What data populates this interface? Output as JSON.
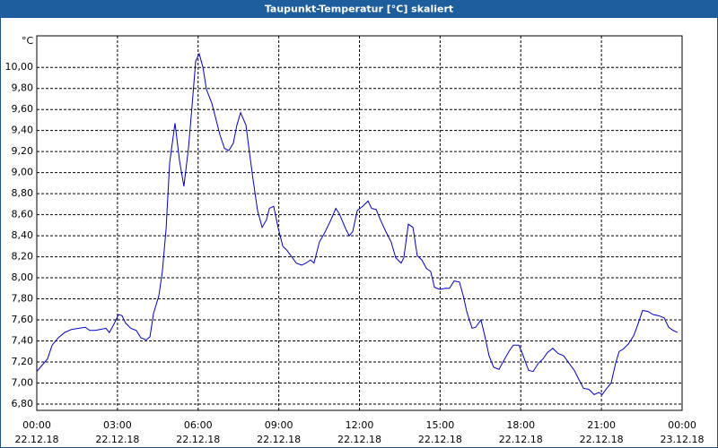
{
  "chart_data": {
    "type": "line",
    "title": "Taupunkt-Temperatur [°C] skaliert",
    "y_unit": "°C",
    "x": [
      0.0,
      0.2,
      0.4,
      0.57,
      0.8,
      1.03,
      1.3,
      1.57,
      1.8,
      1.97,
      2.17,
      2.37,
      2.57,
      2.7,
      2.87,
      3.04,
      3.17,
      3.3,
      3.5,
      3.7,
      3.87,
      4.07,
      4.21,
      4.34,
      4.54,
      4.67,
      4.81,
      4.94,
      5.14,
      5.31,
      5.47,
      5.64,
      5.77,
      5.91,
      6.04,
      6.18,
      6.31,
      6.51,
      6.64,
      6.81,
      6.98,
      7.14,
      7.31,
      7.44,
      7.58,
      7.78,
      7.91,
      8.04,
      8.21,
      8.38,
      8.54,
      8.65,
      8.81,
      8.98,
      9.15,
      9.31,
      9.48,
      9.65,
      9.85,
      10.01,
      10.18,
      10.31,
      10.51,
      10.71,
      10.92,
      11.12,
      11.25,
      11.48,
      11.62,
      11.75,
      11.92,
      12.12,
      12.32,
      12.45,
      12.62,
      12.78,
      12.98,
      13.18,
      13.35,
      13.55,
      13.65,
      13.82,
      13.99,
      14.15,
      14.32,
      14.49,
      14.65,
      14.79,
      14.99,
      15.19,
      15.35,
      15.52,
      15.72,
      15.86,
      15.99,
      16.19,
      16.32,
      16.52,
      16.66,
      16.82,
      16.99,
      17.19,
      17.36,
      17.56,
      17.72,
      17.93,
      18.06,
      18.29,
      18.46,
      18.66,
      18.83,
      18.99,
      19.19,
      19.39,
      19.59,
      19.79,
      19.99,
      20.19,
      20.33,
      20.53,
      20.73,
      20.9,
      21.03,
      21.2,
      21.36,
      21.53,
      21.66,
      21.8,
      22.0,
      22.2,
      22.36,
      22.53,
      22.73,
      22.93,
      23.13,
      23.33,
      23.5,
      23.67,
      23.83
    ],
    "values": [
      7.11,
      7.17,
      7.23,
      7.36,
      7.43,
      7.48,
      7.51,
      7.52,
      7.53,
      7.5,
      7.5,
      7.51,
      7.52,
      7.48,
      7.56,
      7.65,
      7.64,
      7.57,
      7.52,
      7.5,
      7.43,
      7.41,
      7.44,
      7.66,
      7.83,
      8.06,
      8.47,
      9.09,
      9.47,
      9.11,
      8.87,
      9.23,
      9.62,
      10.06,
      10.13,
      10.0,
      9.79,
      9.66,
      9.53,
      9.36,
      9.23,
      9.21,
      9.28,
      9.45,
      9.57,
      9.45,
      9.19,
      8.94,
      8.64,
      8.48,
      8.55,
      8.66,
      8.68,
      8.47,
      8.3,
      8.26,
      8.2,
      8.14,
      8.12,
      8.14,
      8.17,
      8.14,
      8.34,
      8.43,
      8.54,
      8.66,
      8.61,
      8.47,
      8.4,
      8.44,
      8.64,
      8.68,
      8.73,
      8.66,
      8.65,
      8.55,
      8.44,
      8.34,
      8.19,
      8.14,
      8.19,
      8.51,
      8.48,
      8.21,
      8.17,
      8.09,
      8.06,
      7.91,
      7.89,
      7.9,
      7.9,
      7.97,
      7.96,
      7.83,
      7.68,
      7.52,
      7.53,
      7.6,
      7.45,
      7.26,
      7.15,
      7.13,
      7.21,
      7.3,
      7.36,
      7.36,
      7.28,
      7.12,
      7.11,
      7.19,
      7.23,
      7.29,
      7.33,
      7.28,
      7.26,
      7.19,
      7.12,
      7.02,
      6.95,
      6.94,
      6.89,
      6.91,
      6.89,
      6.95,
      7.0,
      7.19,
      7.3,
      7.32,
      7.37,
      7.45,
      7.56,
      7.69,
      7.68,
      7.65,
      7.64,
      7.62,
      7.53,
      7.5,
      7.48
    ],
    "color": "#0000c8",
    "xlim": [
      0,
      24
    ],
    "xticks": [
      {
        "value": 0,
        "label": "00:00"
      },
      {
        "value": 3,
        "label": "03:00"
      },
      {
        "value": 6,
        "label": "06:00"
      },
      {
        "value": 9,
        "label": "09:00"
      },
      {
        "value": 12,
        "label": "12:00"
      },
      {
        "value": 15,
        "label": "15:00"
      },
      {
        "value": 18,
        "label": "18:00"
      },
      {
        "value": 21,
        "label": "21:00"
      },
      {
        "value": 24,
        "label": "00:00"
      }
    ],
    "xtick_dates": [
      "22.12.18",
      "22.12.18",
      "22.12.18",
      "22.12.18",
      "22.12.18",
      "22.12.18",
      "22.12.18",
      "22.12.18",
      "23.12.18"
    ],
    "ylim": [
      6.74,
      10.3
    ],
    "yticks": [
      {
        "value": 6.8,
        "label": "6,80"
      },
      {
        "value": 7.0,
        "label": "7,00"
      },
      {
        "value": 7.2,
        "label": "7,20"
      },
      {
        "value": 7.4,
        "label": "7,40"
      },
      {
        "value": 7.6,
        "label": "7,60"
      },
      {
        "value": 7.8,
        "label": "7,80"
      },
      {
        "value": 8.0,
        "label": "8,00"
      },
      {
        "value": 8.2,
        "label": "8,20"
      },
      {
        "value": 8.4,
        "label": "8,40"
      },
      {
        "value": 8.6,
        "label": "8,60"
      },
      {
        "value": 8.8,
        "label": "8,80"
      },
      {
        "value": 9.0,
        "label": "9,00"
      },
      {
        "value": 9.2,
        "label": "9,20"
      },
      {
        "value": 9.4,
        "label": "9,40"
      },
      {
        "value": 9.6,
        "label": "9,60"
      },
      {
        "value": 9.8,
        "label": "9,80"
      },
      {
        "value": 10.0,
        "label": "10,00"
      }
    ],
    "grid": true
  }
}
